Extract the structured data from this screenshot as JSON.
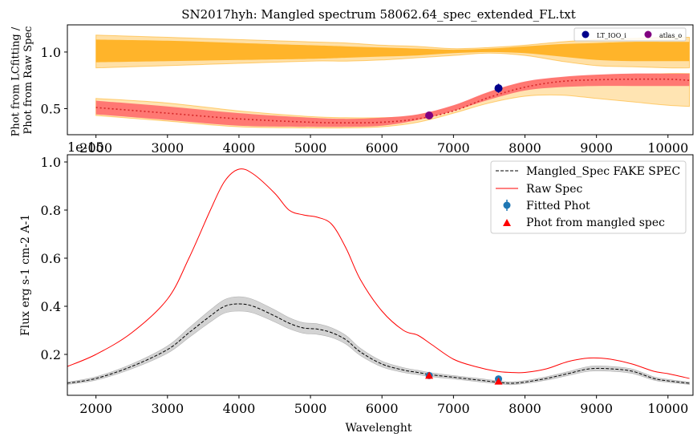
{
  "figure": {
    "title": "SN2017hyh: Mangled spectrum 58062.64_spec_extended_FL.txt"
  },
  "colors": {
    "orange_band": "#ffa500",
    "red_band": "#ff6b6b",
    "red_line": "#ff0000",
    "gray_band": "#c8c8c8",
    "fitted_phot": "#1f77b4",
    "mangled_phot": "#ff0000",
    "lt_ioo_i": "#00008b",
    "atlas_o": "#800080"
  },
  "chart_data": [
    {
      "type": "line",
      "ylabel": "Phot from LCfitting /\nPhot from Raw Spec",
      "xlim": [
        1600,
        10350
      ],
      "ylim": [
        0.27,
        1.24
      ],
      "x_ticks": [
        2000,
        3000,
        4000,
        5000,
        6000,
        7000,
        8000,
        9000,
        10000
      ],
      "x_tick_labels": [
        "2000",
        "3000",
        "4000",
        "5000",
        "6000",
        "7000",
        "8000",
        "9000",
        "10000"
      ],
      "y_ticks": [
        0.5,
        1.0
      ],
      "y_tick_labels": [
        "0.5",
        "1.0"
      ],
      "offset_text": "1e-15",
      "legend": {
        "position": "top-right",
        "entries": [
          "LT_IOO_i",
          "atlas_o"
        ]
      },
      "x": [
        1600,
        2000,
        3000,
        4000,
        5000,
        5500,
        6000,
        6500,
        7000,
        7500,
        8000,
        8500,
        9000,
        9500,
        10000,
        10300
      ],
      "series": [
        {
          "name": "unity_band_outer_upper",
          "values": [
            1.16,
            1.15,
            1.13,
            1.11,
            1.09,
            1.08,
            1.06,
            1.05,
            1.03,
            1.04,
            1.06,
            1.09,
            1.11,
            1.12,
            1.13,
            1.13
          ]
        },
        {
          "name": "unity_band_outer_lower",
          "values": [
            0.85,
            0.86,
            0.88,
            0.9,
            0.92,
            0.92,
            0.93,
            0.95,
            0.97,
            0.99,
            0.97,
            0.92,
            0.88,
            0.87,
            0.86,
            0.86
          ]
        },
        {
          "name": "unity_band_inner_upper",
          "values": [
            1.12,
            1.11,
            1.1,
            1.08,
            1.06,
            1.05,
            1.04,
            1.03,
            1.02,
            1.03,
            1.05,
            1.07,
            1.08,
            1.09,
            1.09,
            1.09
          ]
        },
        {
          "name": "unity_band_inner_lower",
          "values": [
            0.9,
            0.91,
            0.92,
            0.93,
            0.94,
            0.95,
            0.96,
            0.97,
            0.99,
            1.0,
            0.99,
            0.96,
            0.93,
            0.92,
            0.92,
            0.92
          ]
        },
        {
          "name": "ratio_band_outer_upper",
          "values": [
            0.62,
            0.59,
            0.55,
            0.48,
            0.43,
            0.42,
            0.42,
            0.44,
            0.52,
            0.64,
            0.73,
            0.77,
            0.79,
            0.8,
            0.81,
            0.81
          ]
        },
        {
          "name": "ratio_band_outer_lower",
          "values": [
            0.45,
            0.44,
            0.39,
            0.34,
            0.33,
            0.33,
            0.34,
            0.38,
            0.46,
            0.55,
            0.61,
            0.62,
            0.59,
            0.56,
            0.53,
            0.52
          ]
        },
        {
          "name": "ratio_band_upper",
          "values": [
            0.6,
            0.57,
            0.52,
            0.46,
            0.42,
            0.41,
            0.42,
            0.45,
            0.53,
            0.65,
            0.74,
            0.78,
            0.8,
            0.81,
            0.81,
            0.81
          ]
        },
        {
          "name": "ratio_band_lower",
          "values": [
            0.46,
            0.45,
            0.4,
            0.35,
            0.34,
            0.34,
            0.35,
            0.4,
            0.48,
            0.58,
            0.66,
            0.69,
            0.7,
            0.7,
            0.7,
            0.7
          ]
        },
        {
          "name": "ratio_median",
          "values": [
            0.52,
            0.51,
            0.46,
            0.41,
            0.38,
            0.375,
            0.38,
            0.41,
            0.48,
            0.6,
            0.69,
            0.74,
            0.755,
            0.76,
            0.76,
            0.75
          ]
        }
      ],
      "points": [
        {
          "label": "LT_IOO_i",
          "x": 7630,
          "y": 0.68,
          "yerr": 0.04,
          "color": "#00008b"
        },
        {
          "label": "atlas_o",
          "x": 6660,
          "y": 0.44,
          "yerr": 0.0,
          "color": "#800080"
        }
      ]
    },
    {
      "type": "line",
      "xlabel": "Wavelenght",
      "ylabel": "Flux erg s-1 cm-2 A-1",
      "xlim": [
        1600,
        10350
      ],
      "ylim": [
        0.03,
        1.03
      ],
      "x_ticks": [
        2000,
        3000,
        4000,
        5000,
        6000,
        7000,
        8000,
        9000,
        10000
      ],
      "x_tick_labels": [
        "2000",
        "3000",
        "4000",
        "5000",
        "6000",
        "7000",
        "8000",
        "9000",
        "10000"
      ],
      "y_ticks": [
        0.2,
        0.4,
        0.6,
        0.8,
        1.0
      ],
      "y_tick_labels": [
        "0.2",
        "0.4",
        "0.6",
        "0.8",
        "1.0"
      ],
      "legend": {
        "position": "top-right",
        "entries": [
          "Mangled_Spec FAKE SPEC",
          "Raw Spec",
          "Fitted Phot",
          "Phot from mangled spec"
        ]
      },
      "series": [
        {
          "name": "Raw Spec",
          "x": [
            1600,
            2000,
            2500,
            3000,
            3300,
            3600,
            3800,
            4000,
            4200,
            4500,
            4700,
            4900,
            5100,
            5300,
            5500,
            5700,
            6000,
            6300,
            6500,
            6700,
            7000,
            7300,
            7600,
            7800,
            8000,
            8300,
            8600,
            8900,
            9200,
            9500,
            9800,
            10000,
            10300
          ],
          "values": [
            0.15,
            0.2,
            0.29,
            0.43,
            0.6,
            0.8,
            0.92,
            0.97,
            0.95,
            0.87,
            0.8,
            0.78,
            0.77,
            0.74,
            0.64,
            0.51,
            0.38,
            0.3,
            0.28,
            0.24,
            0.18,
            0.15,
            0.13,
            0.125,
            0.125,
            0.14,
            0.17,
            0.185,
            0.18,
            0.16,
            0.13,
            0.12,
            0.1
          ]
        },
        {
          "name": "Mangled_Spec FAKE SPEC",
          "x": [
            1600,
            2000,
            2500,
            3000,
            3300,
            3600,
            3800,
            4000,
            4200,
            4500,
            4700,
            4900,
            5100,
            5300,
            5500,
            5700,
            6000,
            6300,
            6500,
            6700,
            7000,
            7300,
            7600,
            7800,
            8000,
            8300,
            8600,
            8900,
            9200,
            9500,
            9800,
            10000,
            10300
          ],
          "values": [
            0.08,
            0.1,
            0.15,
            0.22,
            0.29,
            0.36,
            0.4,
            0.41,
            0.4,
            0.36,
            0.33,
            0.31,
            0.305,
            0.29,
            0.26,
            0.21,
            0.16,
            0.135,
            0.125,
            0.115,
            0.105,
            0.095,
            0.085,
            0.08,
            0.085,
            0.1,
            0.12,
            0.14,
            0.14,
            0.13,
            0.1,
            0.09,
            0.08
          ]
        },
        {
          "name": "mangled_uncertainty_band_upper",
          "x": [
            1600,
            2000,
            2500,
            3000,
            3300,
            3600,
            3800,
            4000,
            4200,
            4500,
            4700,
            4900,
            5100,
            5300,
            5500,
            5700,
            6000,
            6300,
            6500,
            6700,
            7000,
            7300,
            7600,
            7800,
            8000,
            8300,
            8600,
            8900,
            9200,
            9500,
            9800,
            10000,
            10300
          ],
          "values": [
            0.085,
            0.107,
            0.16,
            0.235,
            0.31,
            0.385,
            0.428,
            0.44,
            0.428,
            0.385,
            0.353,
            0.332,
            0.327,
            0.31,
            0.278,
            0.225,
            0.172,
            0.145,
            0.134,
            0.123,
            0.112,
            0.102,
            0.091,
            0.086,
            0.091,
            0.107,
            0.128,
            0.15,
            0.15,
            0.139,
            0.107,
            0.096,
            0.085
          ]
        },
        {
          "name": "mangled_uncertainty_band_lower",
          "x": [
            1600,
            2000,
            2500,
            3000,
            3300,
            3600,
            3800,
            4000,
            4200,
            4500,
            4700,
            4900,
            5100,
            5300,
            5500,
            5700,
            6000,
            6300,
            6500,
            6700,
            7000,
            7300,
            7600,
            7800,
            8000,
            8300,
            8600,
            8900,
            9200,
            9500,
            9800,
            10000,
            10300
          ],
          "values": [
            0.075,
            0.093,
            0.14,
            0.205,
            0.27,
            0.335,
            0.372,
            0.38,
            0.372,
            0.335,
            0.307,
            0.288,
            0.283,
            0.27,
            0.242,
            0.195,
            0.148,
            0.125,
            0.116,
            0.107,
            0.098,
            0.088,
            0.079,
            0.074,
            0.079,
            0.093,
            0.112,
            0.13,
            0.13,
            0.121,
            0.093,
            0.084,
            0.075
          ]
        }
      ],
      "points": [
        {
          "label": "Fitted Phot",
          "x": 6660,
          "y": 0.112,
          "color": "#1f77b4",
          "marker": "circle"
        },
        {
          "label": "Fitted Phot",
          "x": 7630,
          "y": 0.098,
          "color": "#1f77b4",
          "marker": "circle"
        },
        {
          "label": "Phot from mangled spec",
          "x": 6660,
          "y": 0.112,
          "color": "#ff0000",
          "marker": "triangle"
        },
        {
          "label": "Phot from mangled spec",
          "x": 7630,
          "y": 0.088,
          "color": "#ff0000",
          "marker": "triangle"
        }
      ]
    }
  ]
}
